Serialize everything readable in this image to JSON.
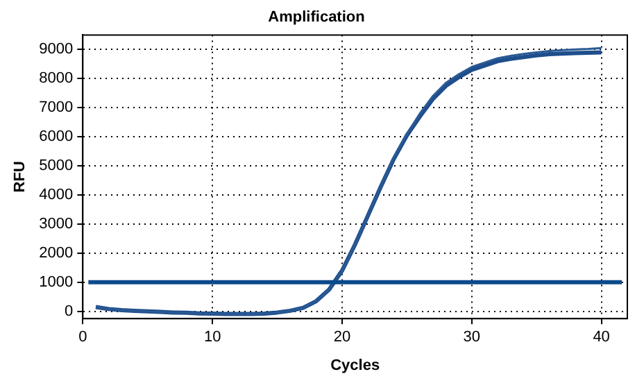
{
  "chart_data": {
    "type": "line",
    "title": "Amplification",
    "xlabel": "Cycles",
    "ylabel": "RFU",
    "x": [
      1,
      2,
      3,
      4,
      5,
      6,
      7,
      8,
      9,
      10,
      11,
      12,
      13,
      14,
      15,
      16,
      17,
      18,
      19,
      20,
      21,
      22,
      23,
      24,
      25,
      26,
      27,
      28,
      29,
      30,
      31,
      32,
      33,
      34,
      35,
      36,
      37,
      38,
      39,
      40
    ],
    "series": [
      {
        "color": "#2a5a94",
        "values": [
          150,
          80,
          40,
          20,
          0,
          -20,
          -40,
          -50,
          -70,
          -80,
          -90,
          -90,
          -90,
          -80,
          -40,
          20,
          120,
          350,
          750,
          1400,
          2300,
          3300,
          4300,
          5300,
          6100,
          6800,
          7400,
          7850,
          8150,
          8400,
          8550,
          8700,
          8780,
          8850,
          8900,
          8950,
          8980,
          9000,
          9020,
          9050
        ]
      },
      {
        "color": "#1f4e8c",
        "values": [
          150,
          80,
          40,
          20,
          0,
          -20,
          -40,
          -50,
          -70,
          -80,
          -90,
          -90,
          -90,
          -80,
          -40,
          20,
          120,
          350,
          750,
          1400,
          2300,
          3300,
          4300,
          5250,
          6050,
          6700,
          7300,
          7750,
          8050,
          8300,
          8450,
          8600,
          8680,
          8740,
          8800,
          8840,
          8860,
          8880,
          8890,
          8900
        ]
      }
    ],
    "ref_lines": [
      {
        "axis": "y",
        "value": 1000,
        "color": "#0b4a8b"
      }
    ],
    "xlim": [
      0,
      42
    ],
    "xticks": [
      0,
      10,
      20,
      30,
      40
    ],
    "ylim": [
      -250,
      9500
    ],
    "yticks": [
      0,
      1000,
      2000,
      3000,
      4000,
      5000,
      6000,
      7000,
      8000,
      9000
    ],
    "grid": true,
    "legend": false,
    "marker": "none",
    "line_style": "solid"
  }
}
